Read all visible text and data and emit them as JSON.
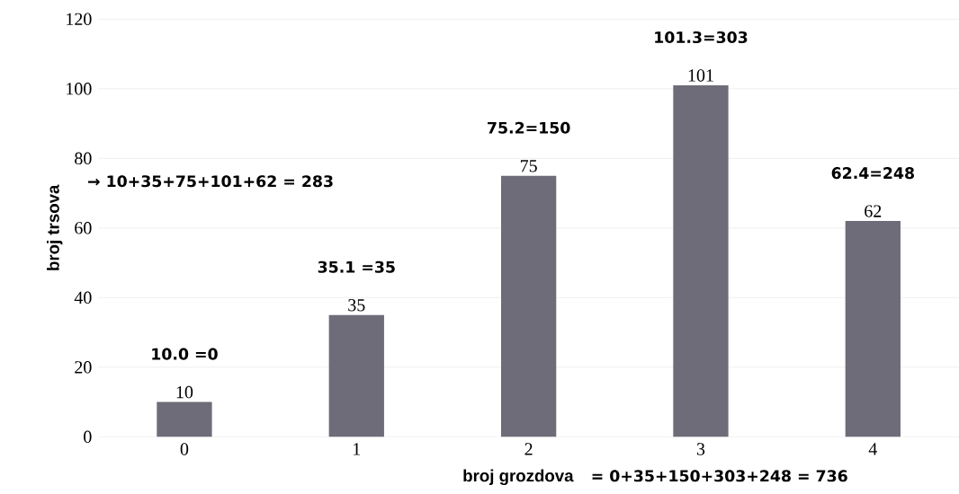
{
  "chart_data": {
    "type": "bar",
    "xlabel": "broj grozdova",
    "ylabel": "broj trsova",
    "categories": [
      "0",
      "1",
      "2",
      "3",
      "4"
    ],
    "values": [
      10,
      35,
      75,
      101,
      62
    ],
    "color": "#6d6c78",
    "ylim": [
      0,
      120
    ],
    "yticks": [
      0,
      20,
      40,
      60,
      80,
      100,
      120
    ],
    "grid": "y",
    "data_labels": true,
    "annotations": [
      {
        "text": "10.0 =0",
        "x": "0",
        "y": 10
      },
      {
        "text": "35.1 =35",
        "x": "1",
        "y": 35
      },
      {
        "text": "75.2=150",
        "x": "2",
        "y": 75
      },
      {
        "text": "101.3=303",
        "x": "3",
        "y": 101
      },
      {
        "text": "62.4=248",
        "x": "4",
        "y": 62
      },
      "→ 10+35+75+101+62 = 283",
      "= 0+35+150+303+248 = 736"
    ]
  }
}
